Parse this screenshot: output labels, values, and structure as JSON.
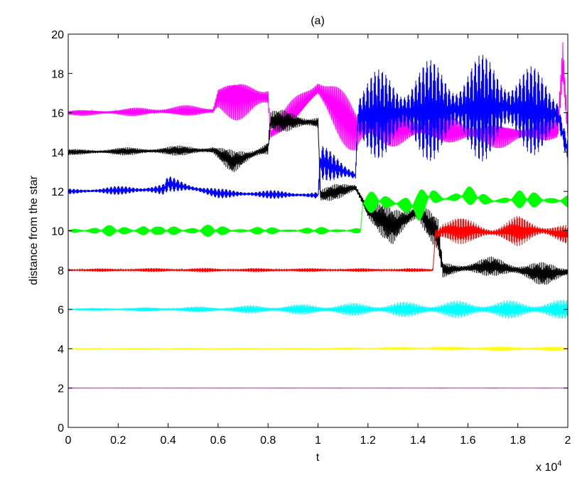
{
  "chart_data": {
    "type": "line",
    "title": "(a)",
    "xlabel": "t",
    "ylabel": "distance from the star",
    "x_multiplier_label": "x 10",
    "x_multiplier_exponent": "4",
    "xlim": [
      0,
      20000
    ],
    "ylim": [
      0,
      20
    ],
    "x_ticks": [
      0,
      2000,
      4000,
      6000,
      8000,
      10000,
      12000,
      14000,
      16000,
      18000,
      20000
    ],
    "x_tick_labels": [
      "0",
      "0.2",
      "0.4",
      "0.6",
      "0.8",
      "1",
      "1.2",
      "1.4",
      "1.6",
      "1.8",
      "2"
    ],
    "y_ticks": [
      0,
      2,
      4,
      6,
      8,
      10,
      12,
      14,
      16,
      18,
      20
    ],
    "y_tick_labels": [
      "0",
      "2",
      "4",
      "6",
      "8",
      "10",
      "12",
      "14",
      "16",
      "18",
      "20"
    ],
    "grid": false,
    "legend": "none",
    "series": [
      {
        "color": "#ff00ff",
        "x": [
          0,
          5800,
          6000,
          8000,
          8100,
          10000,
          11500,
          12000,
          17500,
          19600,
          19800,
          20000
        ],
        "center": [
          16,
          16.1,
          16.8,
          16.8,
          14.9,
          17.2,
          15.2,
          15.3,
          14.9,
          15.1,
          18.5,
          15
        ],
        "amp": [
          0.15,
          0.35,
          1.3,
          1.0,
          0.5,
          1.0,
          1.8,
          1.1,
          0.7,
          0.6,
          1.6,
          1.0
        ]
      },
      {
        "color": "#000000",
        "x": [
          0,
          5800,
          6600,
          7200,
          8000,
          8100,
          10000,
          10100,
          11500,
          12000,
          13000,
          14000,
          14800,
          15000,
          17000,
          19000,
          20000
        ],
        "center": [
          14,
          14.1,
          13.5,
          13.8,
          14.2,
          15.6,
          15.5,
          11.8,
          12.2,
          11.0,
          10.2,
          11.0,
          9.8,
          8.0,
          8.2,
          7.8,
          7.9
        ],
        "amp": [
          0.15,
          0.3,
          0.6,
          0.5,
          0.5,
          0.6,
          0.5,
          0.4,
          0.4,
          0.7,
          1.0,
          1.0,
          0.8,
          0.4,
          0.5,
          0.6,
          0.5
        ]
      },
      {
        "color": "#0000ff",
        "x": [
          0,
          3800,
          4000,
          6000,
          10000,
          10100,
          11500,
          11600,
          13000,
          17500,
          19600,
          20000
        ],
        "center": [
          12,
          12.1,
          12.4,
          11.9,
          11.8,
          13.5,
          12.8,
          15.8,
          16.0,
          16.3,
          15.9,
          14.0
        ],
        "amp": [
          0.15,
          0.3,
          0.4,
          0.25,
          0.2,
          0.9,
          0.6,
          2.0,
          2.5,
          2.8,
          1.8,
          1.5
        ]
      },
      {
        "color": "#00ff00",
        "x": [
          0,
          2000,
          3000,
          3600,
          4500,
          6000,
          8000,
          10000,
          11700,
          11800,
          12500,
          14000,
          14500,
          15000,
          16000,
          17000,
          18000,
          20000
        ],
        "center": [
          10,
          10,
          10,
          10,
          10,
          10,
          10,
          10,
          10,
          11.4,
          11.5,
          11.2,
          11.8,
          11.6,
          11.8,
          11.5,
          11.6,
          11.5
        ],
        "amp": [
          0.2,
          0.3,
          0.5,
          0.2,
          0.4,
          0.3,
          0.2,
          0.2,
          0.2,
          0.5,
          0.6,
          0.8,
          0.6,
          0.4,
          0.5,
          0.3,
          0.5,
          0.4
        ]
      },
      {
        "color": "#ff0000",
        "x": [
          0,
          5000,
          10000,
          14600,
          14700,
          15000,
          16000,
          17000,
          18000,
          19000,
          20000
        ],
        "center": [
          8,
          8,
          8,
          8,
          9.8,
          10.0,
          10.0,
          9.9,
          10.0,
          10.0,
          9.8
        ],
        "amp": [
          0.08,
          0.12,
          0.1,
          0.1,
          0.8,
          1.0,
          0.6,
          0.4,
          0.8,
          0.5,
          0.5
        ]
      },
      {
        "color": "#00ffff",
        "x": [
          0,
          5000,
          10000,
          15000,
          20000
        ],
        "center": [
          6,
          6,
          6,
          6,
          6
        ],
        "amp": [
          0.05,
          0.15,
          0.3,
          0.45,
          0.5
        ]
      },
      {
        "color": "#ffff00",
        "x": [
          0,
          10000,
          14000,
          17000,
          20000
        ],
        "center": [
          4,
          4,
          4.02,
          4,
          4
        ],
        "amp": [
          0.01,
          0.03,
          0.08,
          0.12,
          0.1
        ]
      },
      {
        "color": "#ff00ff",
        "x": [
          0,
          20000
        ],
        "center": [
          2,
          2
        ],
        "amp": [
          0.01,
          0.01
        ]
      }
    ]
  }
}
